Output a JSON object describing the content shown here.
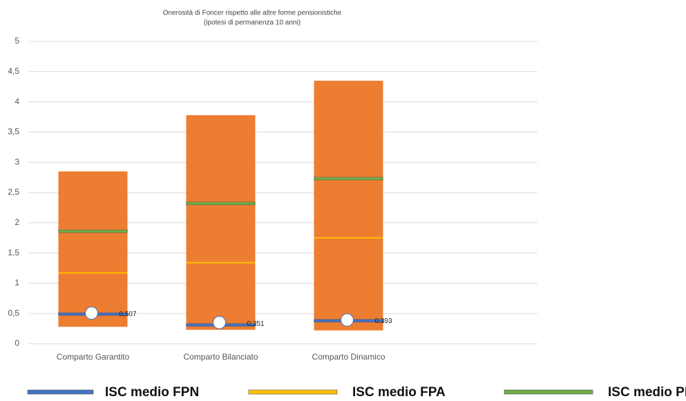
{
  "chart_data": {
    "type": "floating-bar",
    "title": "Onerosità di Foncer rispetto alle altre forme pensionistiche",
    "subtitle": "(ipotesi di permanenza 10 anni)",
    "categories": [
      "Comparto Garantito",
      "Comparto Bilanciato",
      "Comparto Dinamico"
    ],
    "low": [
      0.28,
      0.23,
      0.22
    ],
    "high": [
      2.85,
      3.78,
      4.35
    ],
    "color": "#ed7d31",
    "series": [
      {
        "name": "ISC medio FPN",
        "color": "#4472c4",
        "values": [
          0.49,
          0.31,
          0.38
        ]
      },
      {
        "name": "ISC medio FPA",
        "color": "#ffc000",
        "values": [
          1.16,
          1.33,
          1.74
        ]
      },
      {
        "name": "ISC medio PIP",
        "color": "#70ad47",
        "values": [
          1.86,
          2.32,
          2.73
        ]
      }
    ],
    "points": {
      "values": [
        0.507,
        0.351,
        0.393
      ],
      "value_labels": [
        "0,507",
        "0,351",
        "0,393"
      ],
      "color": "#ffffff"
    },
    "ylim": [
      0,
      5
    ],
    "yticks": [
      0,
      {
        "value": 0.5,
        "label": "0,5"
      },
      1,
      {
        "value": 1.5,
        "label": "1,5"
      },
      2,
      {
        "value": 2.5,
        "label": "2,5"
      },
      3,
      {
        "value": 3.5,
        "label": "3,5"
      },
      4,
      {
        "value": 4.5,
        "label": "4,5"
      },
      5
    ],
    "grid": true
  }
}
